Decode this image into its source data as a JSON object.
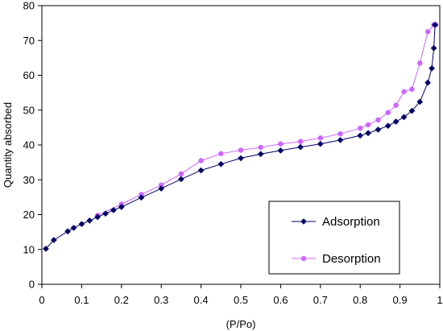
{
  "chart_data": {
    "type": "line",
    "title": "",
    "xlabel": "(P/Po)",
    "ylabel": "Quantity absorbed",
    "xlim": [
      0,
      1
    ],
    "ylim": [
      0,
      80
    ],
    "xticks": [
      0,
      0.1,
      0.2,
      0.3,
      0.4,
      0.5,
      0.6,
      0.7,
      0.8,
      0.9,
      1
    ],
    "xtick_labels": [
      "0",
      "0.1",
      "0.2",
      "0.3",
      "0.4",
      "0.5",
      "0.6",
      "0.7",
      "0.8",
      "0.9",
      "1"
    ],
    "yticks": [
      0,
      10,
      20,
      30,
      40,
      50,
      60,
      70,
      80
    ],
    "ytick_labels": [
      "0",
      "10",
      "20",
      "30",
      "40",
      "50",
      "60",
      "70",
      "80"
    ],
    "grid": false,
    "legend_position": "bottom-right",
    "series": [
      {
        "name": "Adsorption",
        "color": "#000066",
        "marker": "diamond",
        "x": [
          0.01,
          0.03,
          0.065,
          0.08,
          0.1,
          0.12,
          0.14,
          0.16,
          0.18,
          0.2,
          0.25,
          0.3,
          0.35,
          0.4,
          0.45,
          0.5,
          0.55,
          0.6,
          0.65,
          0.7,
          0.75,
          0.8,
          0.82,
          0.845,
          0.87,
          0.89,
          0.91,
          0.93,
          0.95,
          0.97,
          0.98,
          0.985,
          0.988
        ],
        "y": [
          10.2,
          12.7,
          15.2,
          16.2,
          17.3,
          18.3,
          19.3,
          20.3,
          21.3,
          22.2,
          24.9,
          27.5,
          30.2,
          32.7,
          34.5,
          36.2,
          37.4,
          38.4,
          39.4,
          40.3,
          41.4,
          42.7,
          43.4,
          44.4,
          45.5,
          46.7,
          48.0,
          49.8,
          52.4,
          57.9,
          62.0,
          67.8,
          74.5
        ]
      },
      {
        "name": "Desorption",
        "color": "#cc66ff",
        "marker": "circle",
        "x": [
          0.14,
          0.2,
          0.25,
          0.3,
          0.35,
          0.4,
          0.45,
          0.5,
          0.55,
          0.6,
          0.65,
          0.7,
          0.75,
          0.8,
          0.82,
          0.845,
          0.87,
          0.89,
          0.91,
          0.93,
          0.95,
          0.97,
          0.985,
          0.99
        ],
        "y": [
          19.8,
          23.0,
          25.8,
          28.5,
          31.7,
          35.5,
          37.5,
          38.5,
          39.3,
          40.3,
          41.0,
          42.0,
          43.2,
          44.8,
          45.8,
          47.2,
          49.3,
          51.4,
          55.3,
          56.0,
          63.5,
          72.5,
          74.5,
          74.5
        ]
      }
    ]
  }
}
